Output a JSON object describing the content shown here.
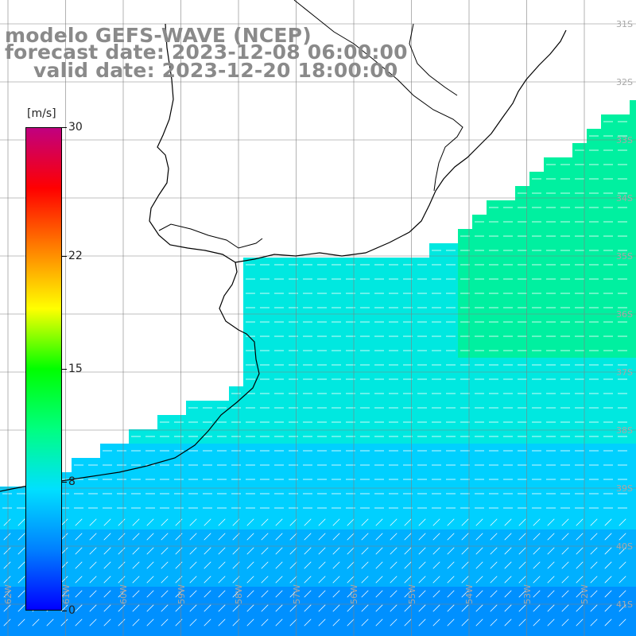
{
  "title": {
    "line1": "modelo GEFS-WAVE (NCEP)",
    "line2": "forecast date: 2023-12-08 06:00:00",
    "line3": "valid date: 2023-12-20 18:00:00"
  },
  "colorbar": {
    "unit": "[m/s]",
    "ticks": [
      {
        "label": "30",
        "value": 30
      },
      {
        "label": "22",
        "value": 22
      },
      {
        "label": "15",
        "value": 15
      },
      {
        "label": "8",
        "value": 8
      },
      {
        "label": "0",
        "value": 0
      }
    ],
    "colors": [
      "#0000ff",
      "#0080ff",
      "#00e0ff",
      "#00ff80",
      "#00ff00",
      "#ffff00",
      "#ff8000",
      "#ff0000",
      "#c00080"
    ]
  },
  "lat_labels": [
    "31S",
    "32S",
    "33S",
    "34S",
    "35S",
    "36S",
    "37S",
    "38S",
    "39S",
    "40S",
    "41S"
  ],
  "lon_labels": [
    "62W",
    "61W",
    "60W",
    "59W",
    "58W",
    "57W",
    "56W",
    "55W",
    "54W",
    "53W",
    "52W"
  ],
  "colors": {
    "land": "#ffffff",
    "coast": "#000000",
    "grid": "#808080",
    "arrow": "#ffffff",
    "title_text": "#8a8a8a",
    "label_text": "#a8a8a8"
  }
}
